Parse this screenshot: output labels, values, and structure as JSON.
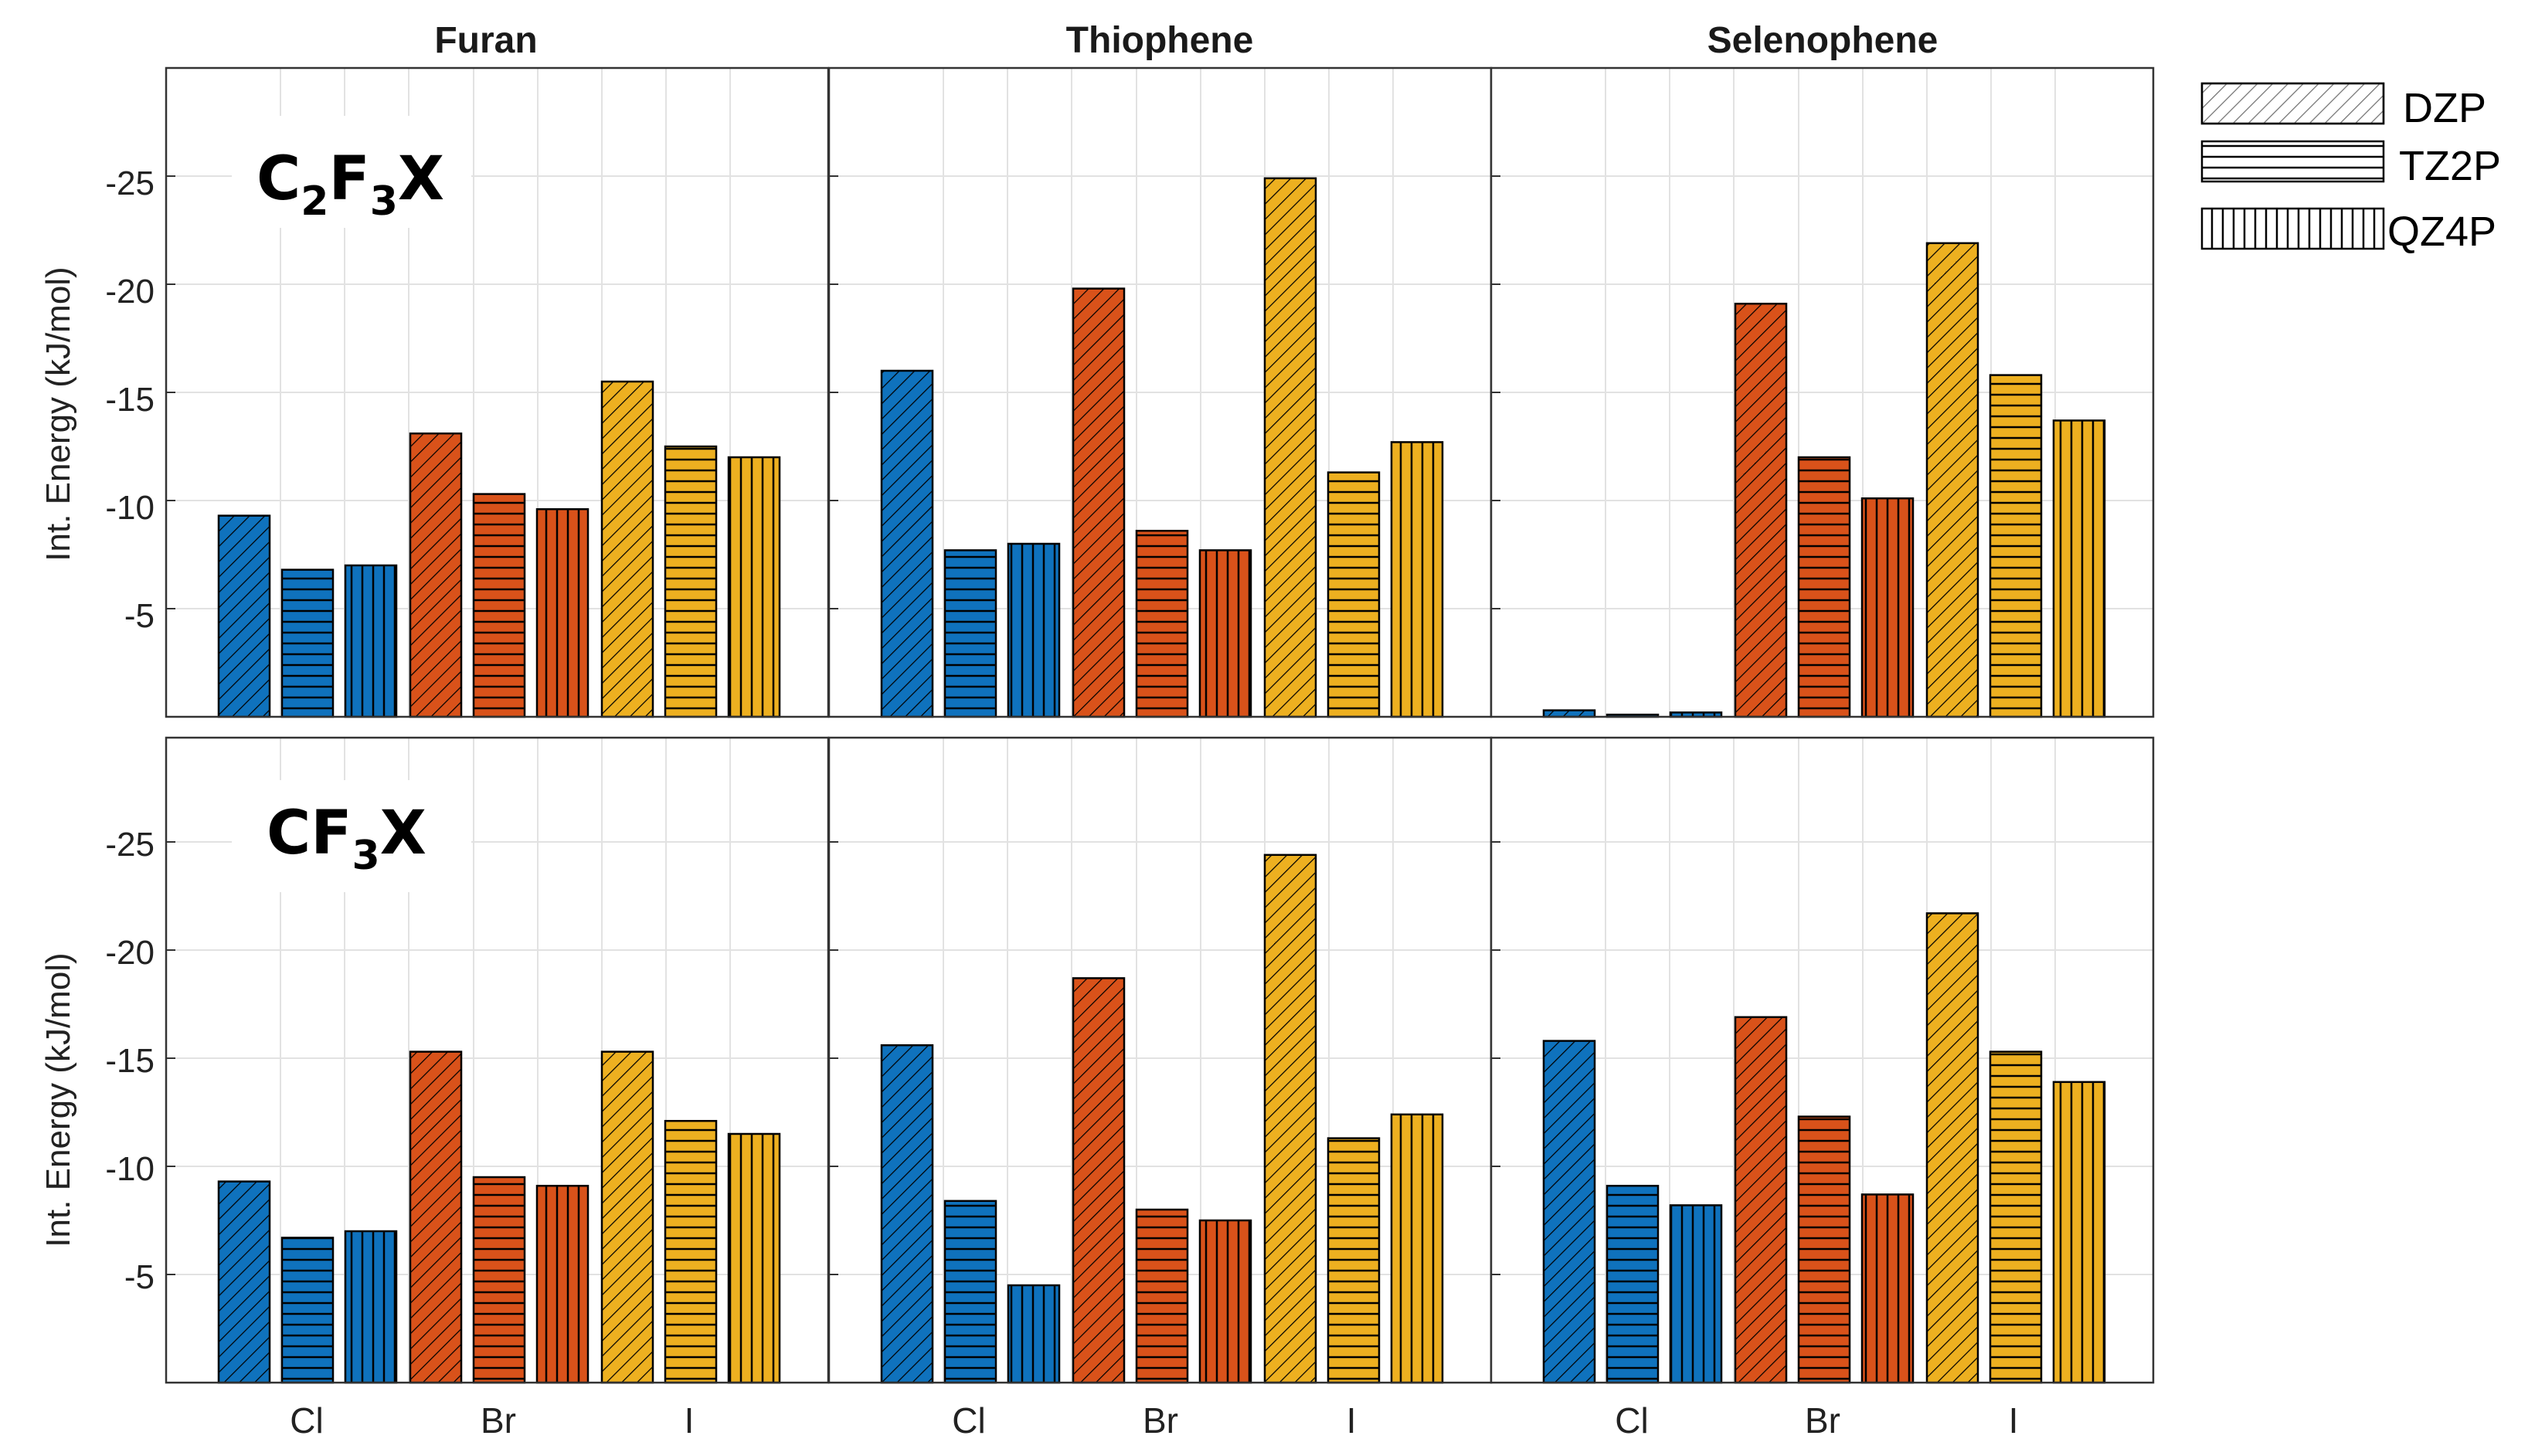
{
  "chart_data": {
    "type": "bar",
    "columns": [
      "Furan",
      "Thiophene",
      "Selenophene"
    ],
    "categories": [
      "Cl",
      "Br",
      "I"
    ],
    "basis_sets": [
      "DZP",
      "TZ2P",
      "QZ4P"
    ],
    "ylabel": "Int. Energy (kJ/mol)",
    "ylim": [
      0,
      -30
    ],
    "yticks": [
      -5,
      -10,
      -15,
      -20,
      -25
    ],
    "ytick_labels": [
      "-5",
      "-10",
      "-15",
      "-20",
      "-25"
    ],
    "colors": {
      "Cl": "#0f72bd",
      "Br": "#d9521a",
      "I": "#edb020"
    },
    "grid": true,
    "legend_position": "right",
    "rows": [
      {
        "label_main": "C",
        "label_sub1": "2",
        "label_mid": "F",
        "label_sub2": "3",
        "label_end": "X",
        "panels": [
          {
            "column": "Furan",
            "values": {
              "Cl": [
                -9.3,
                -6.8,
                -7.0
              ],
              "Br": [
                -13.1,
                -10.3,
                -9.6
              ],
              "I": [
                -15.5,
                -12.5,
                -12.0
              ]
            }
          },
          {
            "column": "Thiophene",
            "values": {
              "Cl": [
                -16.0,
                -7.7,
                -8.0
              ],
              "Br": [
                -19.8,
                -8.6,
                -7.7
              ],
              "I": [
                -24.9,
                -11.3,
                -12.7
              ]
            }
          },
          {
            "column": "Selenophene",
            "values": {
              "Cl": [
                -0.3,
                -0.1,
                -0.2
              ],
              "Br": [
                -19.1,
                -12.0,
                -10.1
              ],
              "I": [
                -21.9,
                -15.8,
                -13.7
              ]
            }
          }
        ]
      },
      {
        "label_main": "CF",
        "label_sub1": "3",
        "label_mid": "",
        "label_sub2": "",
        "label_end": "X",
        "panels": [
          {
            "column": "Furan",
            "values": {
              "Cl": [
                -9.3,
                -6.7,
                -7.0
              ],
              "Br": [
                -15.3,
                -9.5,
                -9.1
              ],
              "I": [
                -15.3,
                -12.1,
                -11.5
              ]
            }
          },
          {
            "column": "Thiophene",
            "values": {
              "Cl": [
                -15.6,
                -8.4,
                -4.5
              ],
              "Br": [
                -18.7,
                -8.0,
                -7.5
              ],
              "I": [
                -24.4,
                -11.3,
                -12.4
              ]
            }
          },
          {
            "column": "Selenophene",
            "values": {
              "Cl": [
                -15.8,
                -9.1,
                -8.2
              ],
              "Br": [
                -16.9,
                -12.3,
                -8.7
              ],
              "I": [
                -21.7,
                -15.3,
                -13.9
              ]
            }
          }
        ]
      }
    ]
  }
}
